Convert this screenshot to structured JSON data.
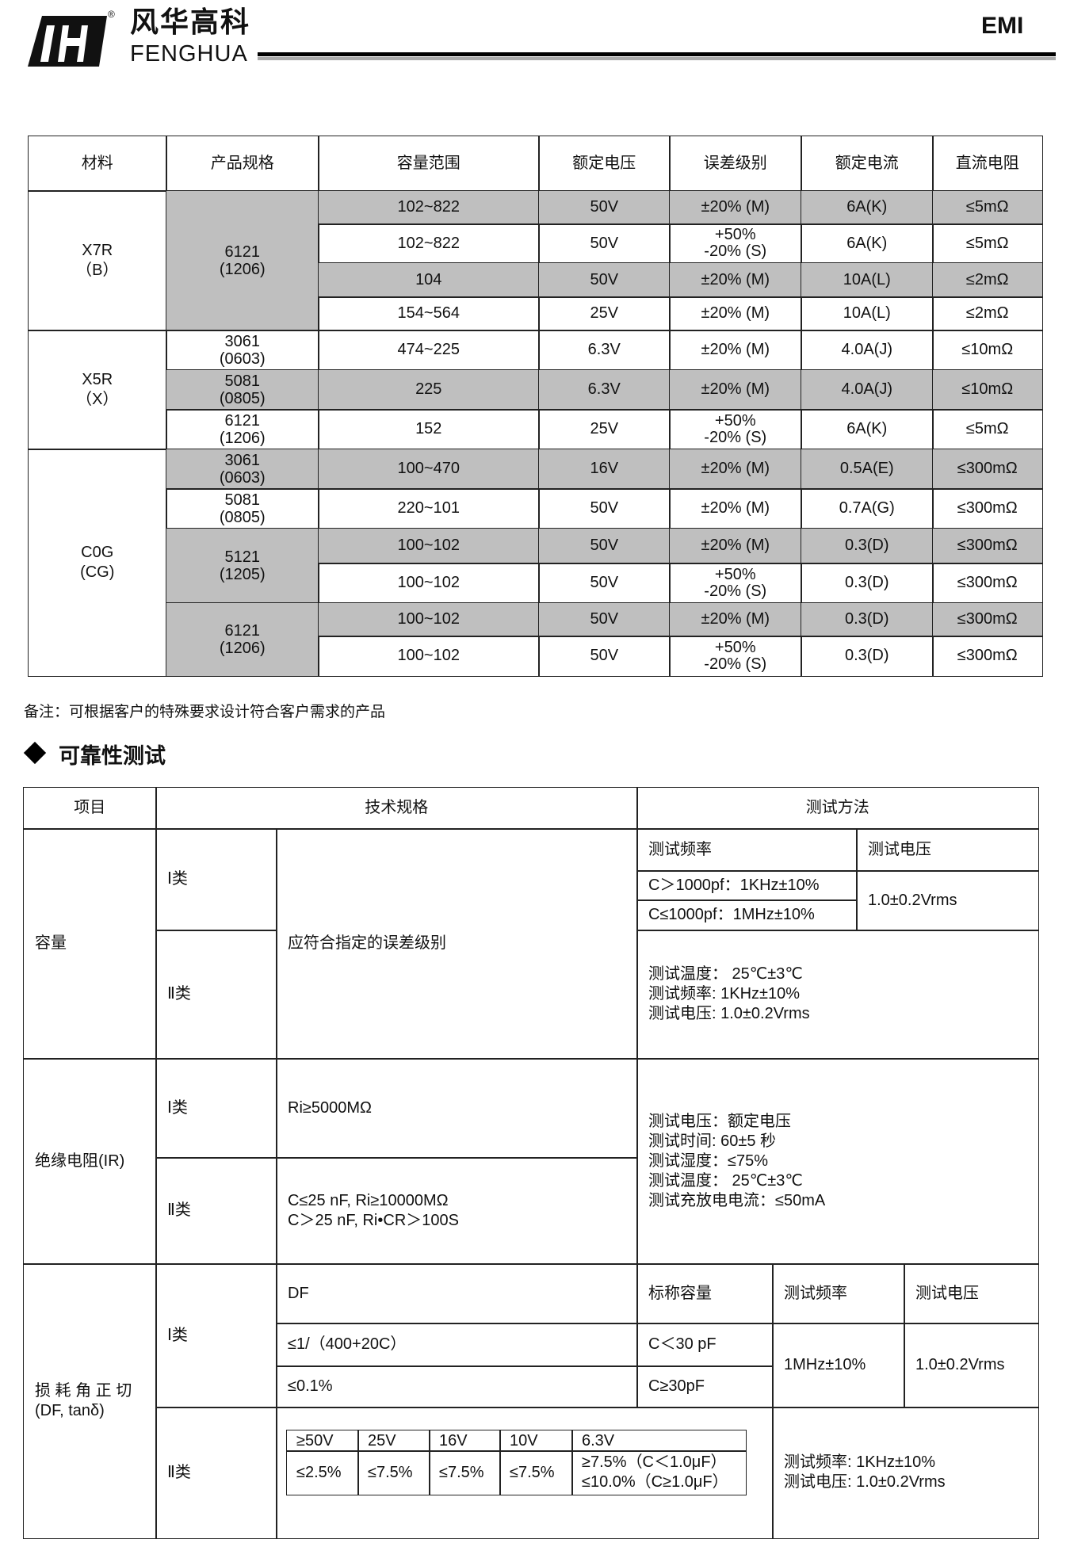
{
  "header": {
    "brand_cn": "风华高科",
    "brand_en": "FENGHUA",
    "registered": "®",
    "doc_tag": "EMI"
  },
  "spec_table": {
    "columns": [
      "材料",
      "产品规格",
      "容量范围",
      "额定电压",
      "误差级别",
      "额定电流",
      "直流电阻"
    ],
    "materials": [
      {
        "name": "X7R\n（B）"
      },
      {
        "name": "X5R\n（X）"
      },
      {
        "name": "C0G\n(CG)"
      }
    ],
    "specs": [
      "6121\n(1206)",
      "3061\n(0603)",
      "5081\n(0805)",
      "6121\n(1206)",
      "3061\n(0603)",
      "5081\n(0805)",
      "5121\n(1205)",
      "6121\n(1206)"
    ],
    "rows": [
      [
        "102~822",
        "50V",
        "±20% (M)",
        "6A(K)",
        "≤5mΩ"
      ],
      [
        "102~822",
        "50V",
        "+50%\n-20%   (S)",
        "6A(K)",
        "≤5mΩ"
      ],
      [
        "104",
        "50V",
        "±20% (M)",
        "10A(L)",
        "≤2mΩ"
      ],
      [
        "154~564",
        "25V",
        "±20% (M)",
        "10A(L)",
        "≤2mΩ"
      ],
      [
        "474~225",
        "6.3V",
        "±20% (M)",
        "4.0A(J)",
        "≤10mΩ"
      ],
      [
        "225",
        "6.3V",
        "±20% (M)",
        "4.0A(J)",
        "≤10mΩ"
      ],
      [
        "152",
        "25V",
        "+50%\n-20%   (S)",
        "6A(K)",
        "≤5mΩ"
      ],
      [
        "100~470",
        "16V",
        "±20% (M)",
        "0.5A(E)",
        "≤300mΩ"
      ],
      [
        "220~101",
        "50V",
        "±20% (M)",
        "0.7A(G)",
        "≤300mΩ"
      ],
      [
        "100~102",
        "50V",
        "±20% (M)",
        "0.3(D)",
        "≤300mΩ"
      ],
      [
        "100~102",
        "50V",
        "+50%\n-20%     (S)",
        "0.3(D)",
        "≤300mΩ"
      ],
      [
        "100~102",
        "50V",
        "±20% (M)",
        "0.3(D)",
        "≤300mΩ"
      ],
      [
        "100~102",
        "50V",
        "+50%\n-20%     (S)",
        "0.3(D)",
        "≤300mΩ"
      ]
    ],
    "shade_color": "#bfbfbf"
  },
  "note": "备注：可根据客户的特殊要求设计符合客户需求的产品",
  "section_title": "可靠性测试",
  "rel": {
    "h_item": "项目",
    "h_spec": "技术规格",
    "h_method": "测试方法",
    "cls1": "Ⅰ类",
    "cls2": "Ⅱ类",
    "cap": {
      "name": "容量",
      "spec": "应符合指定的误差级别",
      "freq_h": "测试频率",
      "volt_h": "测试电压",
      "f1": "C＞1000pf：1KHz±10%",
      "f2": "C≤1000pf：1MHz±10%",
      "volt": "1.0±0.2Vrms",
      "cls2_method": "测试温度：  25℃±3℃\n测试频率: 1KHz±10%\n测试电压: 1.0±0.2Vrms"
    },
    "ir": {
      "name": "绝缘电阻(IR)",
      "spec1": "Ri≥5000MΩ",
      "spec2": "C≤25 nF, Ri≥10000MΩ\nC＞25 nF, Ri•CR＞100S",
      "method": "测试电压：额定电压\n测试时间: 60±5 秒\n测试湿度：≤75%\n测试温度：  25℃±3℃\n测试充放电电流：≤50mA"
    },
    "df": {
      "name": "损 耗 角 正 切\n(DF, tanδ)",
      "h_df": "DF",
      "h_cap": "标称容量",
      "h_freq": "测试频率",
      "h_volt": "测试电压",
      "r1_df": "≤1/（400+20C）",
      "r1_cap": "C＜30 pF",
      "r2_df": "≤0.1%",
      "r2_cap": "C≥30pF",
      "freq": "1MHz±10%",
      "volt": "1.0±0.2Vrms",
      "cls2_volts": [
        "≥50V",
        "25V",
        "16V",
        "10V",
        "6.3V"
      ],
      "cls2_vals": [
        "≤2.5%",
        "≤7.5%",
        "≤7.5%",
        "≤7.5%",
        "≥7.5%（C＜1.0μF）\n≤10.0%（C≥1.0μF）"
      ],
      "cls2_method": "测试频率: 1KHz±10%\n测试电压: 1.0±0.2Vrms"
    }
  }
}
